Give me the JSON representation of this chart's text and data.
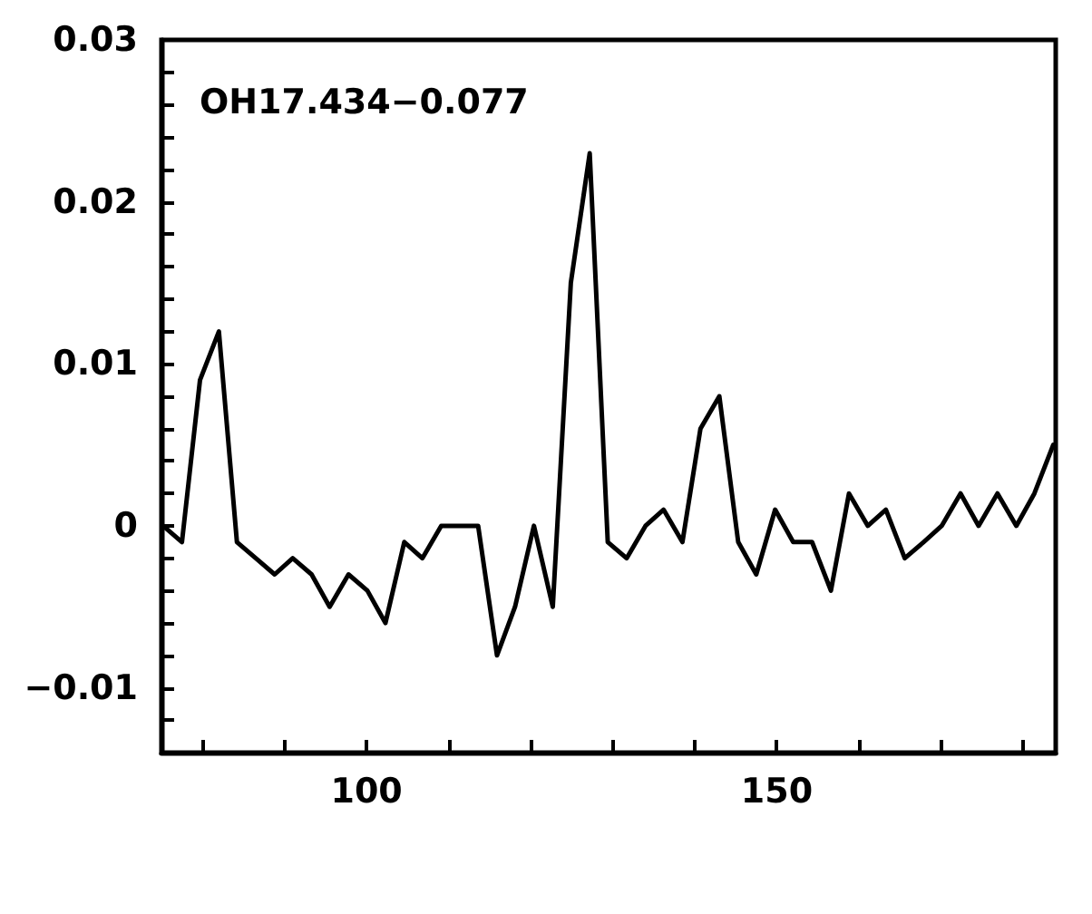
{
  "chart_data": {
    "type": "line",
    "title": "OH17.434−0.077",
    "x": [
      75.2,
      77.5,
      79.7,
      82.0,
      84.2,
      86.5,
      88.8,
      91.0,
      93.3,
      95.5,
      97.8,
      100.1,
      102.3,
      104.6,
      106.8,
      109.1,
      111.4,
      113.6,
      115.9,
      118.1,
      120.4,
      122.7,
      124.9,
      127.2,
      129.4,
      131.7,
      134.0,
      136.2,
      138.5,
      140.7,
      143.0,
      145.3,
      147.5,
      149.8,
      152.0,
      154.3,
      156.6,
      158.8,
      161.1,
      163.3,
      165.6,
      167.9,
      170.1,
      172.4,
      174.6,
      176.9,
      179.2,
      181.4,
      183.7
    ],
    "series": [
      {
        "color": "#000000",
        "values": [
          0,
          -0.001,
          0.009,
          0.012,
          -0.001,
          -0.002,
          -0.003,
          -0.002,
          -0.003,
          -0.005,
          -0.003,
          -0.004,
          -0.006,
          -0.001,
          -0.002,
          0,
          0,
          0,
          -0.008,
          -0.005,
          0,
          -0.005,
          0.015,
          0.023,
          -0.001,
          -0.002,
          0,
          0.001,
          -0.001,
          0.006,
          0.008,
          -0.001,
          -0.003,
          0.001,
          -0.001,
          -0.001,
          -0.004,
          0.002,
          0,
          0.001,
          -0.002,
          -0.001,
          0,
          0.002,
          0,
          0.002,
          0,
          0.002,
          0.005
        ]
      }
    ],
    "xlim": [
      75,
      184
    ],
    "xticks": [
      {
        "value": 80,
        "label": null
      },
      {
        "value": 90,
        "label": null
      },
      100,
      {
        "value": 110,
        "label": null
      },
      {
        "value": 120,
        "label": null
      },
      {
        "value": 130,
        "label": null
      },
      {
        "value": 140,
        "label": null
      },
      150,
      {
        "value": 160,
        "label": null
      },
      {
        "value": 170,
        "label": null
      },
      {
        "value": 180,
        "label": null
      }
    ],
    "ylim": [
      -0.014,
      0.03
    ],
    "yticks": [
      {
        "value": -0.012,
        "label": null
      },
      -0.01,
      {
        "value": -0.008,
        "label": null
      },
      {
        "value": -0.006,
        "label": null
      },
      {
        "value": -0.004,
        "label": null
      },
      {
        "value": -0.002,
        "label": null
      },
      0,
      {
        "value": 0.002,
        "label": null
      },
      {
        "value": 0.004,
        "label": null
      },
      {
        "value": 0.006,
        "label": null
      },
      {
        "value": 0.008,
        "label": null
      },
      0.01,
      {
        "value": 0.012,
        "label": null
      },
      {
        "value": 0.014,
        "label": null
      },
      {
        "value": 0.016,
        "label": null
      },
      {
        "value": 0.018,
        "label": null
      },
      0.02,
      {
        "value": 0.022,
        "label": null
      },
      {
        "value": 0.024,
        "label": null
      },
      {
        "value": 0.026,
        "label": null
      },
      {
        "value": 0.028,
        "label": null
      },
      0.03
    ],
    "grid": false,
    "marker": "none",
    "line_style": "solid"
  }
}
